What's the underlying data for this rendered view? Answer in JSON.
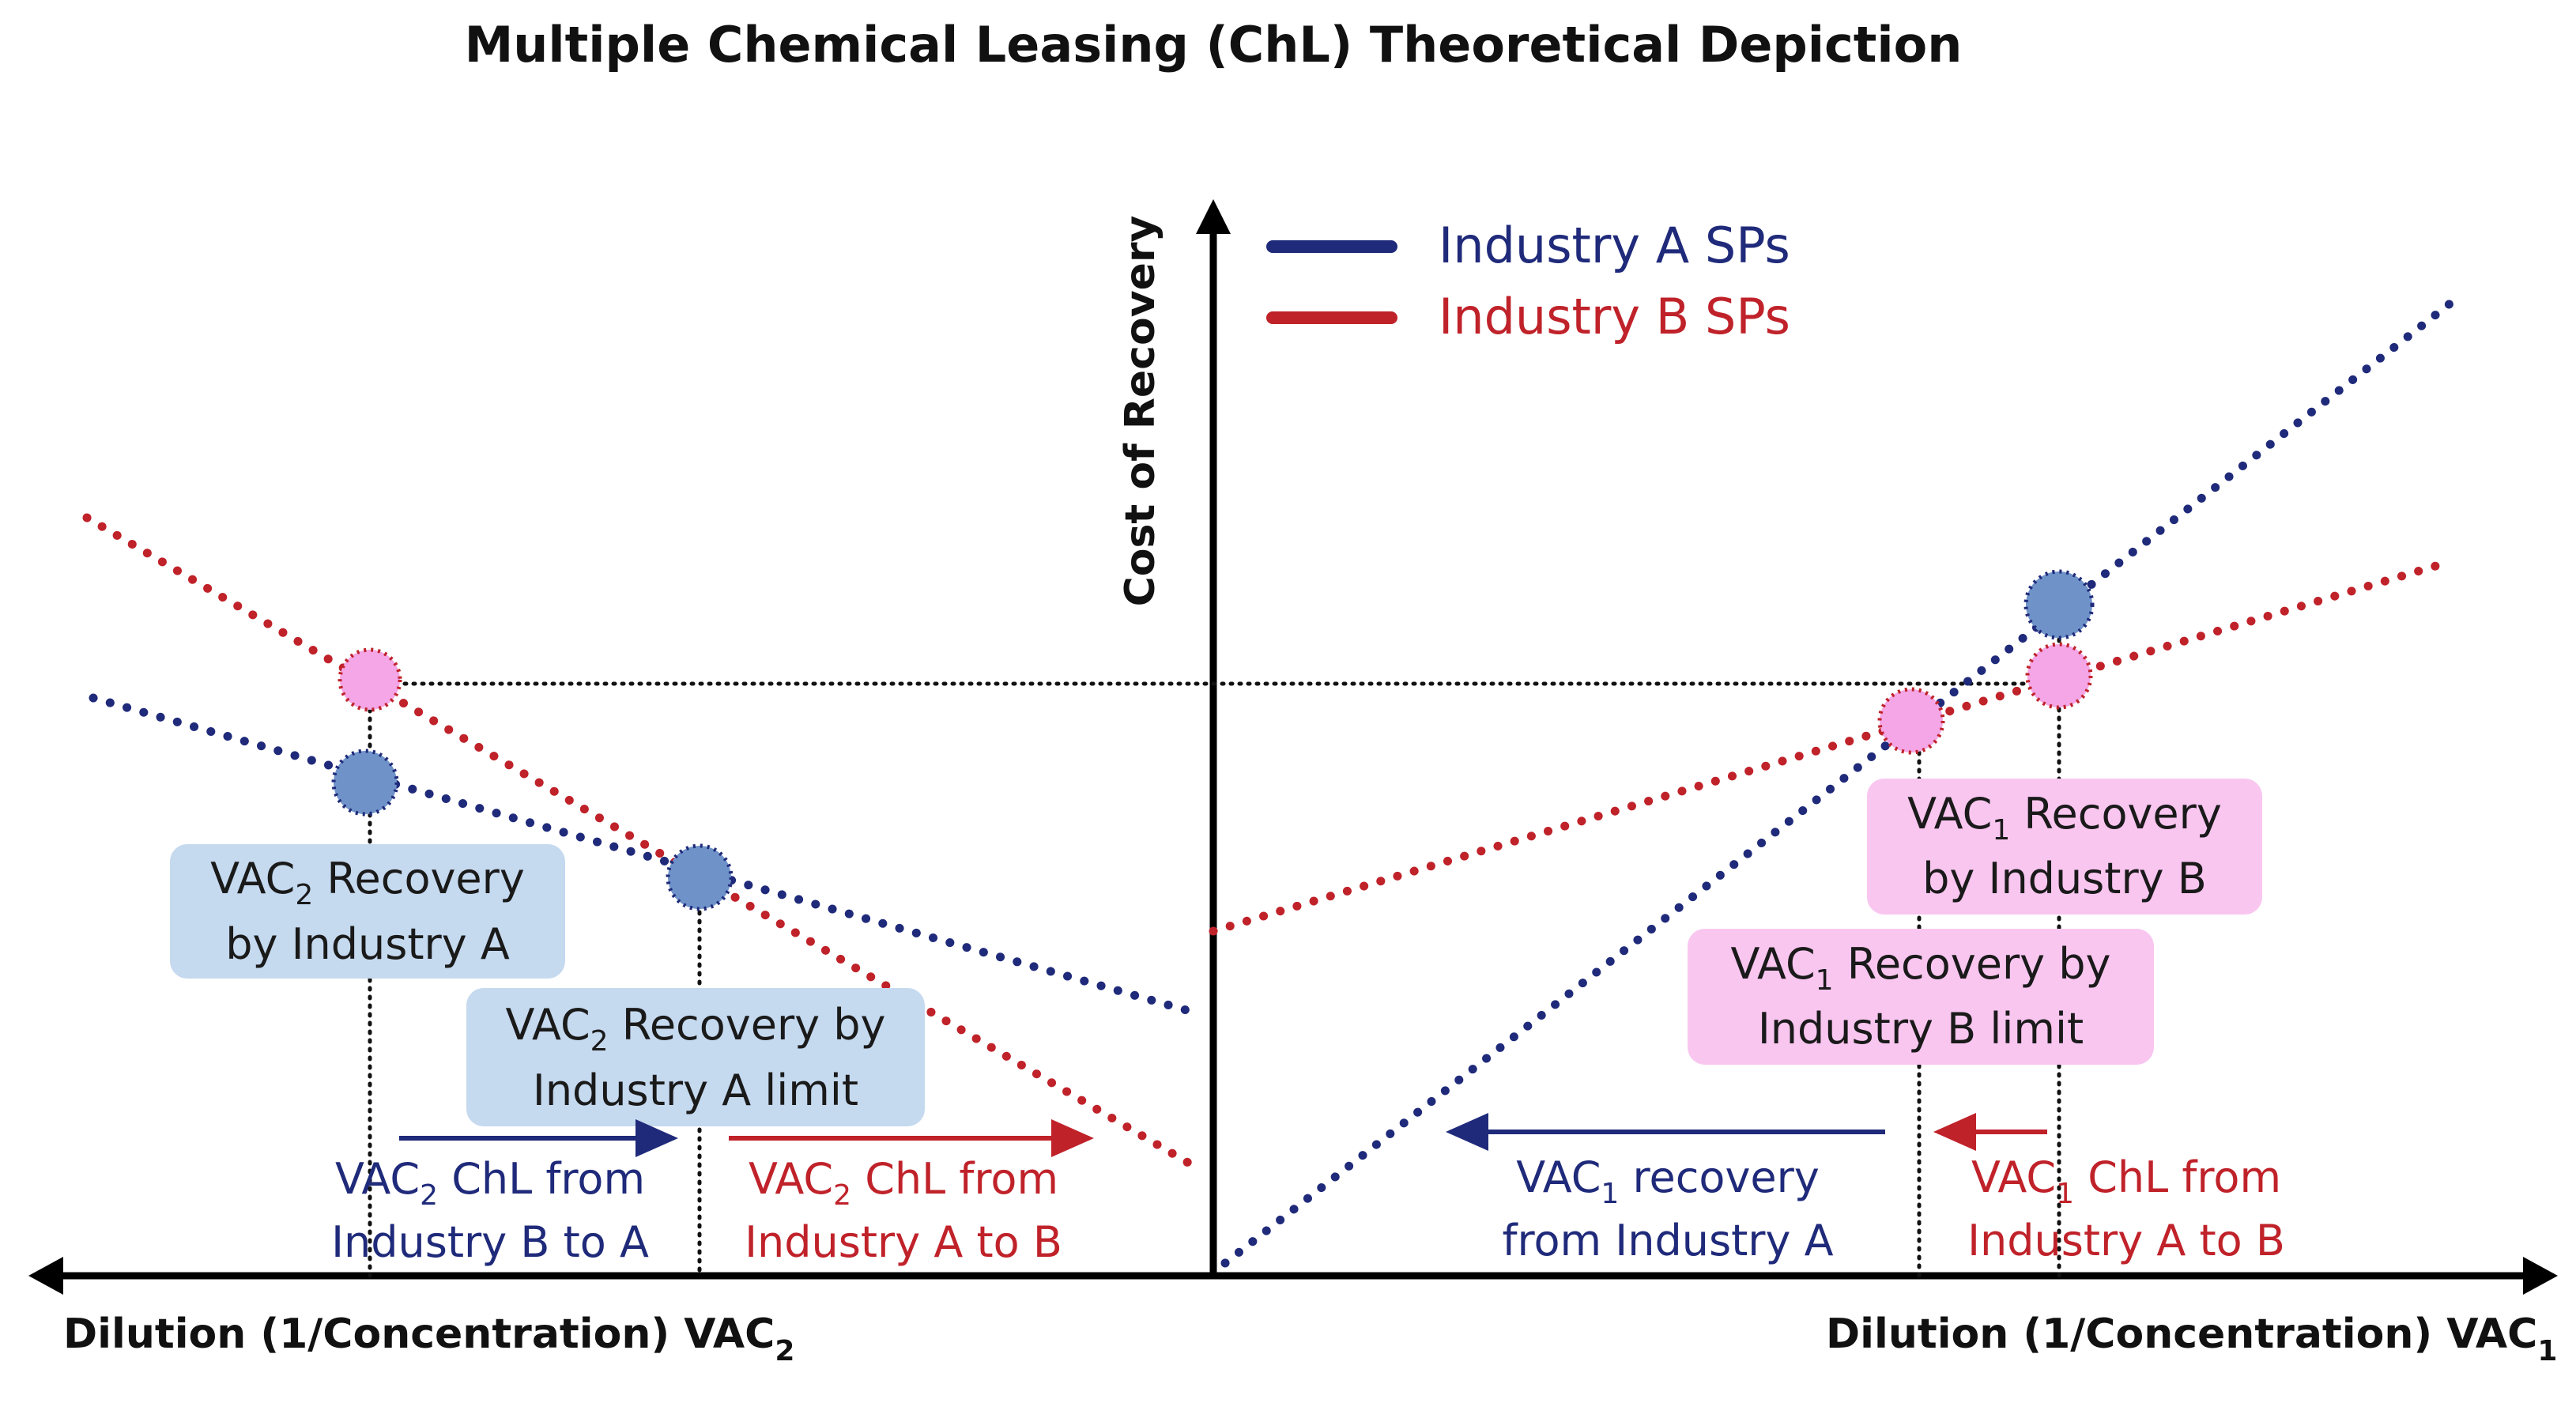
{
  "title": "Multiple Chemical Leasing (ChL) Theoretical Depiction",
  "axes": {
    "y_label": "Cost of Recovery",
    "x_left_label": {
      "base": "Dilution (1/Concentration) VAC",
      "sub": "2"
    },
    "x_right_label": {
      "base": "Dilution (1/Concentration) VAC",
      "sub": "1"
    }
  },
  "legend": [
    {
      "label": "Industry A SPs",
      "color": "#1f2a7a"
    },
    {
      "label": "Industry B SPs",
      "color": "#c0222a"
    }
  ],
  "colors": {
    "industry_a": "#1f2a7a",
    "industry_b": "#c0222a",
    "blue_box": "#c5d9ef",
    "pink_box": "#f9c6f0",
    "blue_point": "#6f93c9",
    "pink_point": "#f4a6e6"
  },
  "boxes": {
    "vac2_recovery_a": {
      "line1": [
        "VAC",
        "2",
        " Recovery"
      ],
      "line2": "by Industry A"
    },
    "vac2_recovery_a_limit": {
      "line1": [
        "VAC",
        "2",
        " Recovery by"
      ],
      "line2": "Industry A limit"
    },
    "vac1_recovery_b": {
      "line1": [
        "VAC",
        "1",
        " Recovery"
      ],
      "line2": "by Industry B"
    },
    "vac1_recovery_b_limit": {
      "line1": [
        "VAC",
        "1",
        " Recovery by"
      ],
      "line2": "Industry B limit"
    }
  },
  "notes": {
    "vac2_chl_b_to_a": {
      "line1": [
        "VAC",
        "2",
        " ChL from"
      ],
      "line2": "Industry B to A"
    },
    "vac2_chl_a_to_b": {
      "line1": [
        "VAC",
        "2",
        " ChL from"
      ],
      "line2": "Industry A to B"
    },
    "vac1_recovery_from_a": {
      "line1": [
        "VAC",
        "1",
        " recovery"
      ],
      "line2": "from Industry A"
    },
    "vac1_chl_a_to_b": {
      "line1": [
        "VAC",
        "1",
        " ChL from"
      ],
      "line2": "Industry A to B"
    }
  }
}
